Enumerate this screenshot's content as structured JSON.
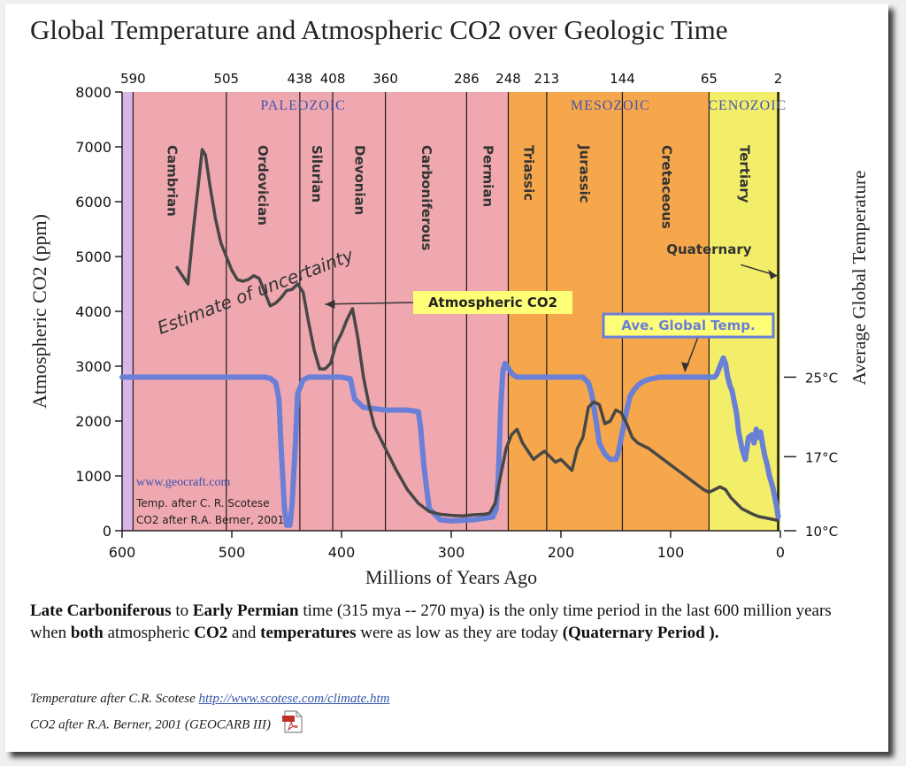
{
  "page": {
    "title": "Global Temperature and Atmospheric CO2 over Geologic Time",
    "caption_parts": [
      {
        "text": "Late Carboniferous",
        "bold": true
      },
      {
        "text": " to ",
        "bold": false
      },
      {
        "text": "Early Permian",
        "bold": true
      },
      {
        "text": " time (315 mya -- 270 mya) is the only time period in the last 600 million years when ",
        "bold": false
      },
      {
        "text": "both",
        "bold": true
      },
      {
        "text": " atmospheric ",
        "bold": false
      },
      {
        "text": "CO2",
        "bold": true
      },
      {
        "text": " and ",
        "bold": false
      },
      {
        "text": "temperatures",
        "bold": true
      },
      {
        "text": " were as low as they are today ",
        "bold": false
      },
      {
        "text": "(Quaternary Period ).",
        "bold": true
      }
    ],
    "credit1_prefix": "Temperature after C.R. Scotese ",
    "credit1_link": "http://www.scotese.com/climate.htm",
    "credit2": "CO2 after R.A. Berner, 2001 (GEOCARB III)",
    "pdf_icon": "pdf-icon"
  },
  "chart_data": {
    "type": "line",
    "xlabel": "Millions of Years Ago",
    "ylabel": "Atmospheric CO2 (ppm)",
    "ylabel_right": "Average Global Temperature",
    "xlim": [
      600,
      0
    ],
    "ylim": [
      0,
      8000
    ],
    "x_reversed": true,
    "x_ticks": [
      600,
      500,
      400,
      300,
      200,
      100,
      0
    ],
    "y_ticks": [
      0,
      1000,
      2000,
      3000,
      4000,
      5000,
      6000,
      7000,
      8000
    ],
    "right_ticks": [
      {
        "label": "25°C",
        "co2": 2800
      },
      {
        "label": "17°C",
        "co2": 1350
      },
      {
        "label": "10°C",
        "co2": 0
      }
    ],
    "top_ticks": [
      "590",
      "505",
      "438",
      "408",
      "360",
      "286",
      "248",
      "213",
      "144",
      "65",
      "2"
    ],
    "boundaries": [
      590,
      505,
      438,
      408,
      360,
      286,
      248,
      213,
      144,
      65,
      2
    ],
    "eras": [
      {
        "name": "PALEOZOIC",
        "x": 435,
        "color": "#f0a8b0",
        "text_color": "#4455aa"
      },
      {
        "name": "MESOZOIC",
        "x": 155,
        "color": "#f6a74c",
        "text_color": "#4455aa"
      },
      {
        "name": "CENOZOIC",
        "x": 30,
        "color": "#f3ee6a",
        "text_color": "#4455aa"
      }
    ],
    "periods": [
      {
        "name": "Cambrian",
        "x": 555
      },
      {
        "name": "Ordovician",
        "x": 472
      },
      {
        "name": "Silurian",
        "x": 423
      },
      {
        "name": "Devonian",
        "x": 384
      },
      {
        "name": "Carboniferous",
        "x": 323
      },
      {
        "name": "Permian",
        "x": 267
      },
      {
        "name": "Triassic",
        "x": 230
      },
      {
        "name": "Jurassic",
        "x": 179
      },
      {
        "name": "Cretaceous",
        "x": 104
      },
      {
        "name": "Tertiary",
        "x": 33
      }
    ],
    "annotations": {
      "quaternary": "Quaternary",
      "co2_label": "Atmospheric CO2",
      "temp_label": "Ave. Global Temp.",
      "uncertainty": "Estimate of uncertainty",
      "website": "www.geocraft.com",
      "source1": "Temp. after C. R. Scotese",
      "source2": "CO2 after R.A. Berner, 2001"
    },
    "colors": {
      "co2": "#474747",
      "temperature": "#6a7fd6",
      "label_box": "#ffff77",
      "website": "#3a50b0"
    },
    "series": [
      {
        "name": "Atmospheric CO2",
        "x": [
          550,
          545,
          540,
          535,
          530,
          527,
          524,
          520,
          515,
          510,
          505,
          500,
          495,
          490,
          485,
          480,
          475,
          470,
          465,
          460,
          455,
          450,
          445,
          440,
          435,
          430,
          425,
          420,
          415,
          410,
          405,
          400,
          395,
          390,
          385,
          380,
          375,
          370,
          365,
          360,
          350,
          340,
          330,
          320,
          310,
          300,
          290,
          280,
          270,
          265,
          260,
          255,
          250,
          245,
          240,
          235,
          230,
          225,
          220,
          215,
          210,
          205,
          200,
          195,
          190,
          185,
          180,
          175,
          170,
          165,
          160,
          155,
          150,
          145,
          140,
          135,
          130,
          120,
          110,
          100,
          90,
          80,
          70,
          65,
          60,
          55,
          50,
          45,
          40,
          35,
          30,
          25,
          20,
          15,
          10,
          5,
          2
        ],
        "y": [
          4800,
          4650,
          4500,
          5500,
          6400,
          6950,
          6850,
          6300,
          5700,
          5250,
          5000,
          4750,
          4580,
          4550,
          4580,
          4650,
          4600,
          4350,
          4100,
          4150,
          4250,
          4380,
          4400,
          4500,
          4350,
          3800,
          3300,
          2950,
          2950,
          3050,
          3400,
          3600,
          3850,
          4050,
          3500,
          2800,
          2300,
          1900,
          1700,
          1500,
          1100,
          750,
          500,
          350,
          300,
          280,
          270,
          290,
          300,
          320,
          500,
          1000,
          1500,
          1750,
          1850,
          1600,
          1450,
          1300,
          1380,
          1450,
          1350,
          1250,
          1300,
          1200,
          1100,
          1500,
          1700,
          2250,
          2350,
          2300,
          1950,
          2000,
          2200,
          2150,
          1950,
          1700,
          1600,
          1500,
          1350,
          1200,
          1050,
          900,
          750,
          700,
          750,
          800,
          750,
          600,
          500,
          400,
          350,
          300,
          260,
          240,
          220,
          200,
          180
        ]
      },
      {
        "name": "Ave. Global Temp.",
        "x": [
          600,
          560,
          520,
          500,
          480,
          470,
          465,
          460,
          457,
          455,
          452,
          450,
          447,
          445,
          442,
          440,
          435,
          430,
          420,
          400,
          392,
          388,
          380,
          360,
          340,
          330,
          328,
          325,
          322,
          320,
          310,
          300,
          280,
          262,
          259,
          257,
          255,
          253,
          251,
          249,
          246,
          244,
          240,
          230,
          200,
          180,
          175,
          172,
          168,
          165,
          160,
          155,
          150,
          148,
          145,
          140,
          137,
          134,
          130,
          125,
          120,
          110,
          100,
          80,
          60,
          58,
          56,
          54,
          52,
          50,
          48,
          46,
          44,
          42,
          40,
          38,
          35,
          32,
          29,
          26,
          24,
          22,
          20,
          18,
          16,
          14,
          12,
          10,
          7,
          5,
          3,
          2
        ],
        "y": [
          2800,
          2800,
          2800,
          2800,
          2800,
          2800,
          2780,
          2700,
          2400,
          1500,
          400,
          100,
          100,
          500,
          1600,
          2500,
          2750,
          2800,
          2800,
          2800,
          2770,
          2400,
          2250,
          2200,
          2200,
          2170,
          1900,
          1200,
          700,
          400,
          200,
          180,
          200,
          250,
          400,
          1000,
          2200,
          2900,
          3050,
          3000,
          2900,
          2850,
          2800,
          2800,
          2800,
          2800,
          2700,
          2500,
          2000,
          1600,
          1400,
          1300,
          1300,
          1400,
          1700,
          2200,
          2450,
          2550,
          2650,
          2720,
          2760,
          2800,
          2800,
          2800,
          2800,
          2850,
          2950,
          3050,
          3150,
          3050,
          2800,
          2650,
          2550,
          2350,
          2150,
          1800,
          1500,
          1300,
          1700,
          1750,
          1600,
          1850,
          1700,
          1800,
          1550,
          1350,
          1200,
          1000,
          800,
          600,
          400,
          250
        ]
      }
    ]
  }
}
